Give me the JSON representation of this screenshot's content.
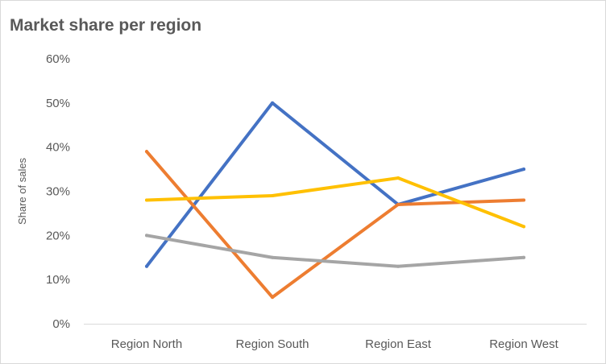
{
  "chart_data": {
    "type": "line",
    "title": "Market share per region",
    "xlabel": "",
    "ylabel": "Share of sales",
    "categories": [
      "Region North",
      "Region South",
      "Region East",
      "Region West"
    ],
    "ylim": [
      0,
      60
    ],
    "yticks": [
      "0%",
      "10%",
      "20%",
      "30%",
      "40%",
      "50%",
      "60%"
    ],
    "grid": false,
    "legend": "none",
    "series": [
      {
        "color": "#4472c4",
        "values": [
          13,
          50,
          27,
          35
        ]
      },
      {
        "color": "#ed7d31",
        "values": [
          39,
          6,
          27,
          28
        ]
      },
      {
        "color": "#a5a5a5",
        "values": [
          20,
          15,
          13,
          15
        ]
      },
      {
        "color": "#ffc000",
        "values": [
          28,
          29,
          33,
          22
        ]
      }
    ]
  }
}
